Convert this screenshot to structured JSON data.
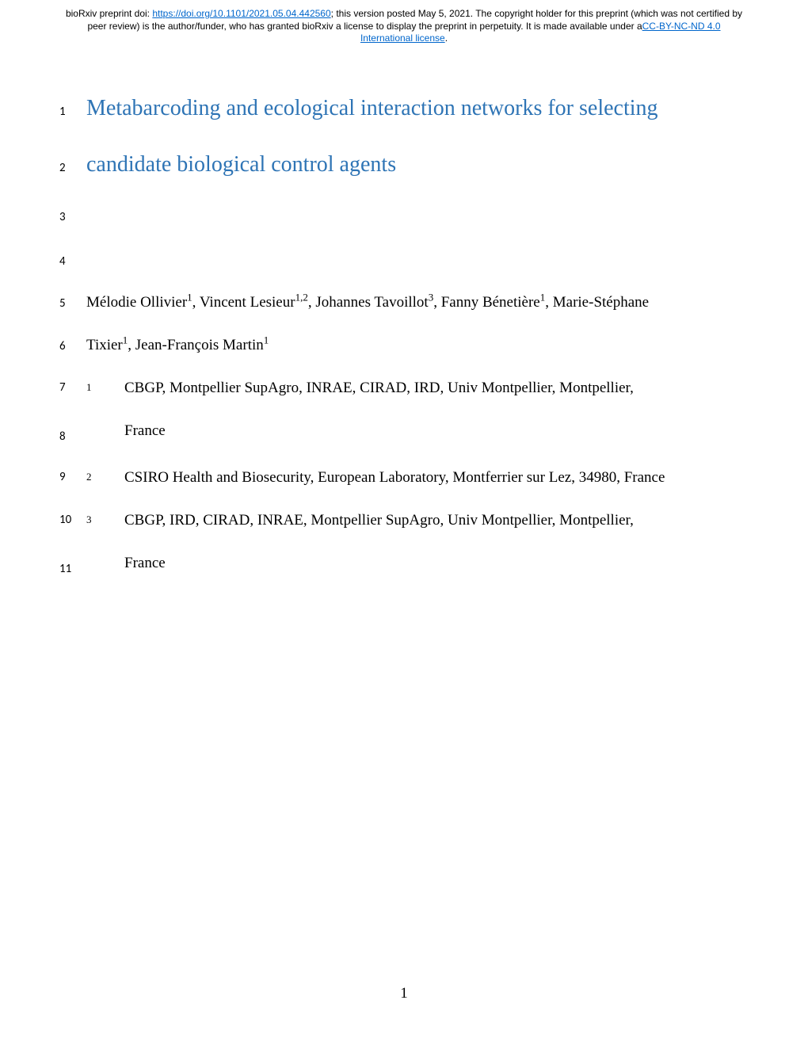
{
  "header": {
    "prefix": "bioRxiv preprint doi: ",
    "doi_link": "https://doi.org/10.1101/2021.05.04.442560",
    "mid_text": "; this version posted May 5, 2021. The copyright holder for this preprint (which was not certified by peer review) is the author/funder, who has granted bioRxiv a license to display the preprint in perpetuity. It is made available under a",
    "license_link": "CC-BY-NC-ND 4.0 International license",
    "suffix": "."
  },
  "lines": {
    "l1": {
      "num": "1",
      "text": "Metabarcoding and ecological interaction networks for selecting"
    },
    "l2": {
      "num": "2",
      "text": "candidate biological control agents"
    },
    "l3": {
      "num": "3"
    },
    "l4": {
      "num": "4"
    },
    "l5": {
      "num": "5"
    },
    "l6": {
      "num": "6"
    },
    "l7": {
      "num": "7"
    },
    "l8": {
      "num": "8"
    },
    "l9": {
      "num": "9"
    },
    "l10": {
      "num": "10"
    },
    "l11": {
      "num": "11"
    }
  },
  "authors": {
    "a1_name": "Mélodie Ollivier",
    "a1_sup": "1",
    "a2_name": ", Vincent Lesieur",
    "a2_sup": "1,2",
    "a3_name": ", Johannes Tavoillot",
    "a3_sup": "3",
    "a4_name": ", Fanny Bénetière",
    "a4_sup": "1",
    "a5_name": ", Marie-Stéphane",
    "a6_name": "Tixier",
    "a6_sup": "1",
    "a7_name": ", Jean-François Martin",
    "a7_sup": "1"
  },
  "affiliations": {
    "aff1_num": "1",
    "aff1_text": "CBGP, Montpellier SupAgro, INRAE, CIRAD, IRD, Univ Montpellier, Montpellier,",
    "aff1_cont": "France",
    "aff2_num": "2",
    "aff2_text": "CSIRO Health and Biosecurity, European Laboratory, Montferrier sur Lez, 34980, France",
    "aff3_num": "3",
    "aff3_text": "CBGP, IRD, CIRAD, INRAE, Montpellier SupAgro, Univ Montpellier, Montpellier,",
    "aff3_cont": "France"
  },
  "page_number": "1"
}
